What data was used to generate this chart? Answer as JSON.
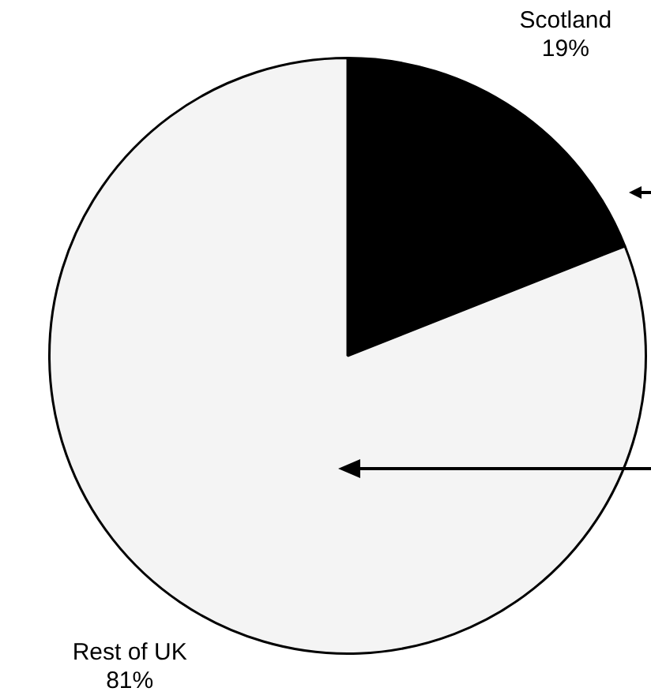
{
  "chart_data": {
    "type": "pie",
    "categories": [
      "Scotland",
      "Rest of UK"
    ],
    "values": [
      19,
      81
    ],
    "colors": [
      "#000000",
      "#f4f4f4"
    ],
    "value_labels": [
      "19%",
      "81%"
    ],
    "legend": false
  }
}
